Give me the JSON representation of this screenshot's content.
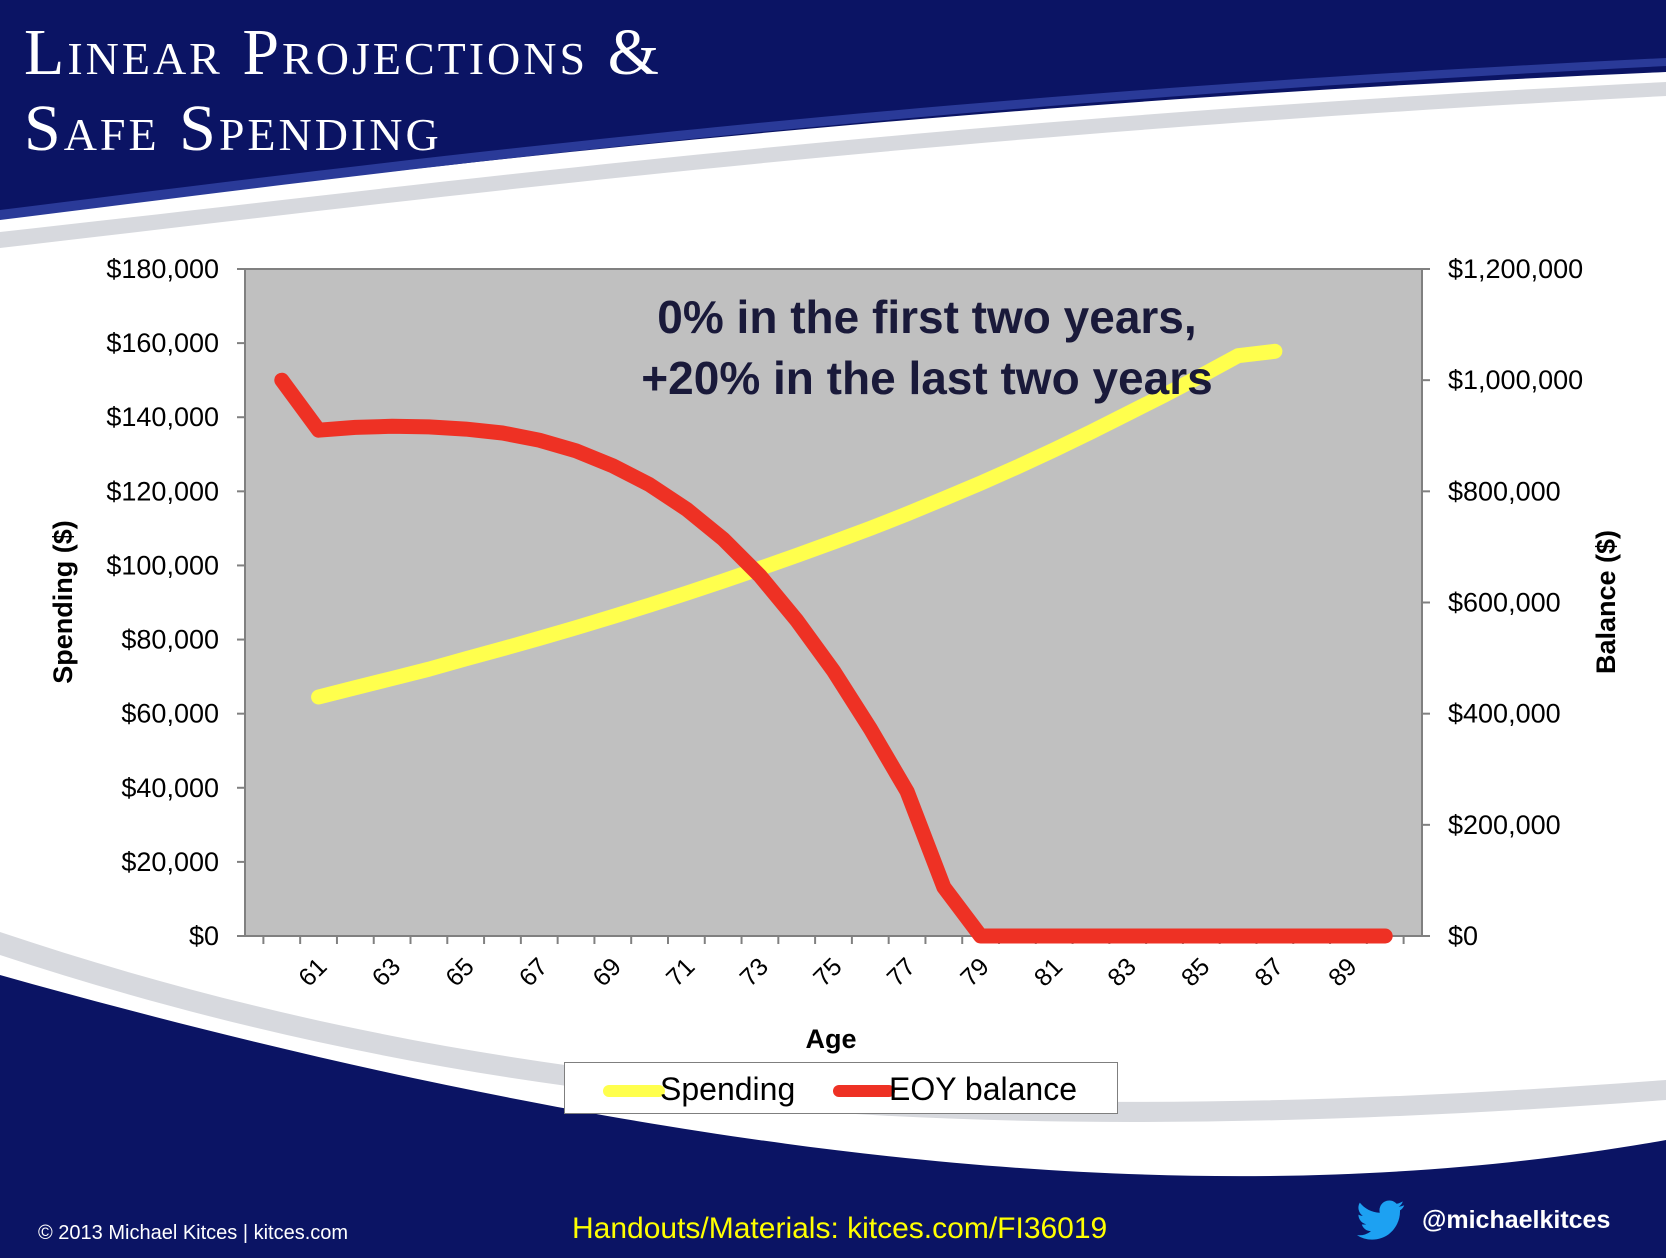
{
  "slide": {
    "title_line1": "Linear Projections &",
    "title_line2": "Safe Spending",
    "colors": {
      "navy": "#0b1464",
      "plot_bg": "#c0c0c0",
      "spending": "#ffff4d",
      "balance": "#ee3124",
      "footer_link": "#ffff00"
    }
  },
  "chart_data": {
    "type": "line",
    "annotation_line1": "0% in the first two years,",
    "annotation_line2": "+20% in the last two years",
    "xlabel": "Age",
    "ylabel_left": "Spending ($)",
    "ylabel_right": "Balance ($)",
    "x_tick_labels": [
      "61",
      "63",
      "65",
      "67",
      "69",
      "71",
      "73",
      "75",
      "77",
      "79",
      "81",
      "83",
      "85",
      "87",
      "89"
    ],
    "x_range": [
      59,
      91
    ],
    "y_left_range": [
      0,
      180000
    ],
    "y_left_ticks": [
      "$0",
      "$20,000",
      "$40,000",
      "$60,000",
      "$80,000",
      "$100,000",
      "$120,000",
      "$140,000",
      "$160,000",
      "$180,000"
    ],
    "y_right_range": [
      0,
      1200000
    ],
    "y_right_ticks": [
      "$0",
      "$200,000",
      "$400,000",
      "$600,000",
      "$800,000",
      "$1,000,000",
      "$1,200,000"
    ],
    "legend_position": "bottom",
    "grid": false,
    "x": [
      60,
      61,
      62,
      63,
      64,
      65,
      66,
      67,
      68,
      69,
      70,
      71,
      72,
      73,
      74,
      75,
      76,
      77,
      78,
      79,
      80,
      81,
      82,
      83,
      84,
      85,
      86,
      87,
      88,
      89,
      90
    ],
    "series": [
      {
        "name": "Spending",
        "axis": "left",
        "color": "#ffff4d",
        "values": [
          null,
          64500,
          67000,
          69500,
          72000,
          74800,
          77500,
          80300,
          83200,
          86200,
          89300,
          92500,
          95800,
          99200,
          102700,
          106300,
          110000,
          113900,
          118000,
          122200,
          126600,
          131200,
          136000,
          141000,
          146000,
          151200,
          156600,
          157800,
          null,
          null,
          null
        ]
      },
      {
        "name": "EOY balance",
        "axis": "right",
        "color": "#ee3124",
        "values": [
          1000000,
          910000,
          915000,
          917000,
          916000,
          912000,
          905000,
          892000,
          873000,
          846000,
          812000,
          768000,
          714000,
          648000,
          568000,
          477000,
          373000,
          260000,
          88000,
          0,
          0,
          0,
          0,
          0,
          0,
          0,
          0,
          0,
          0,
          0,
          0
        ]
      }
    ]
  },
  "legend": {
    "spending_label": "Spending",
    "balance_label": "EOY balance"
  },
  "footer": {
    "copyright": "© 2013 Michael Kitces  |  kitces.com",
    "handouts": "Handouts/Materials: kitces.com/FI36019",
    "twitter_handle": "@michaelkitces",
    "twitter_icon": "twitter-bird-icon"
  }
}
